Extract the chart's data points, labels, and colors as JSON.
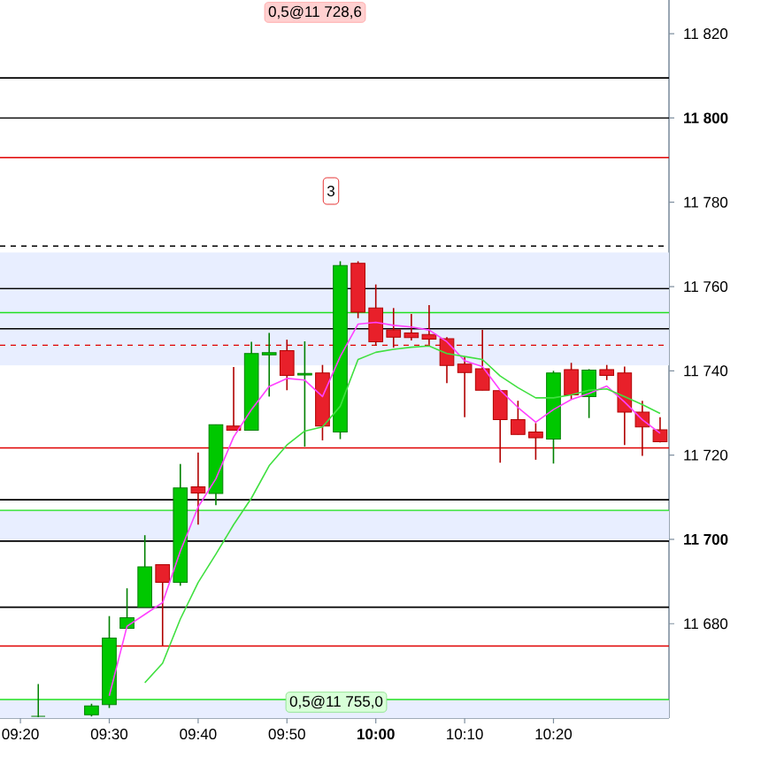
{
  "chart_data": {
    "type": "candlestick",
    "x": [
      9.3667,
      9.4667,
      9.5,
      9.5333,
      9.5667,
      9.6,
      9.6333,
      9.6667,
      9.7,
      9.7333,
      9.7667,
      9.8,
      9.8333,
      9.8667,
      9.9,
      9.9333,
      9.9667,
      10,
      10.0333,
      10.0667,
      10.1,
      10.1333,
      10.1667,
      10.2,
      10.2333,
      10.2667,
      10.3,
      10.3333,
      10.3667,
      10.4,
      10.4333,
      10.4667,
      10.5,
      10.5333
    ],
    "ohlc": [
      [
        11658,
        11665.7,
        11657.8,
        11658
      ],
      [
        11658.4,
        11661,
        11658,
        11660.5
      ],
      [
        11660.8,
        11681.8,
        11660,
        11676.6
      ],
      [
        11678.9,
        11688.4,
        11678.9,
        11681.4
      ],
      [
        11683.9,
        11701,
        11683.9,
        11693.5
      ],
      [
        11694,
        11694,
        11674.8,
        11689.8
      ],
      [
        11689.8,
        11717.9,
        11689,
        11712.2
      ],
      [
        11712.5,
        11720.6,
        11703.5,
        11711
      ],
      [
        11710.9,
        11727.2,
        11708.1,
        11727.2
      ],
      [
        11726.9,
        11740.9,
        11725.9,
        11725.9
      ],
      [
        11725.9,
        11746.9,
        11725.9,
        11744.1
      ],
      [
        11743.8,
        11749,
        11733.9,
        11744.3
      ],
      [
        11744.8,
        11747.4,
        11735.4,
        11738.9
      ],
      [
        11739,
        11747,
        11722,
        11739.4
      ],
      [
        11739.5,
        11741.4,
        11723.5,
        11726.9
      ],
      [
        11725.5,
        11766,
        11723.8,
        11765
      ],
      [
        11765.5,
        11766,
        11752.5,
        11753.9
      ],
      [
        11754.9,
        11760.5,
        11746,
        11746.9
      ],
      [
        11749.7,
        11754.9,
        11745.5,
        11748
      ],
      [
        11749,
        11753.5,
        11747.2,
        11747.9
      ],
      [
        11748.6,
        11755.6,
        11746.2,
        11747.5
      ],
      [
        11747.6,
        11748,
        11737.1,
        11741.3
      ],
      [
        11741.6,
        11743.4,
        11729,
        11739.6
      ],
      [
        11740.5,
        11749.7,
        11735.4,
        11735.4
      ],
      [
        11735.3,
        11735.3,
        11718.2,
        11728.4
      ],
      [
        11728.4,
        11732.9,
        11724.9,
        11724.9
      ],
      [
        11725.5,
        11727.6,
        11718.9,
        11724.1
      ],
      [
        11723.8,
        11740,
        11718,
        11739.5
      ],
      [
        11740.3,
        11741.9,
        11733.2,
        11734.3
      ],
      [
        11733.9,
        11740.4,
        11728.8,
        11740.2
      ],
      [
        11740.3,
        11741.4,
        11737.8,
        11738.9
      ],
      [
        11739.5,
        11741,
        11722.4,
        11730.2
      ],
      [
        11730.2,
        11732.9,
        11719.8,
        11726.7
      ],
      [
        11726,
        11729,
        11723,
        11723.2
      ]
    ],
    "series": [
      {
        "type": "line",
        "color": "#ff40ff",
        "x": [
          9.5,
          9.5333,
          9.5667,
          9.6,
          9.6333,
          9.6667,
          9.7,
          9.7333,
          9.7667,
          9.8,
          9.8333,
          9.8667,
          9.9,
          9.9333,
          9.9667,
          10,
          10.0333,
          10.0667,
          10.1,
          10.1333,
          10.1667,
          10.2,
          10.2333,
          10.2667,
          10.3,
          10.3333,
          10.3667,
          10.4,
          10.4333,
          10.4667,
          10.5,
          10.5333
        ],
        "values": [
          11662.9,
          11679.4,
          11682.2,
          11685,
          11697.2,
          11707.7,
          11714.4,
          11724.3,
          11730.8,
          11736.3,
          11738.2,
          11737.8,
          11733.9,
          11743.4,
          11751.1,
          11751.5,
          11750.8,
          11750.4,
          11749.7,
          11746.9,
          11742.4,
          11741,
          11735.4,
          11731.3,
          11727.8,
          11730.8,
          11733.2,
          11734.6,
          11736.4,
          11732.6,
          11728.4,
          11725.2
        ]
      },
      {
        "type": "line",
        "color": "#40e040",
        "x": [
          9.5667,
          9.6,
          9.6333,
          9.6667,
          9.7,
          9.7333,
          9.7667,
          9.8,
          9.8333,
          9.8667,
          9.9,
          9.9333,
          9.9667,
          10,
          10.0333,
          10.0667,
          10.1,
          10.1333,
          10.1667,
          10.2,
          10.2333,
          10.2667,
          10.3,
          10.3333,
          10.3667,
          10.4,
          10.4333,
          10.4667,
          10.5,
          10.5333
        ],
        "values": [
          11666,
          11670.6,
          11681.1,
          11689.8,
          11696.5,
          11703.5,
          11709.8,
          11717.5,
          11722.4,
          11725.7,
          11726.7,
          11731.6,
          11742.7,
          11744.4,
          11745.1,
          11745.6,
          11745.9,
          11744.1,
          11743.4,
          11742.7,
          11738.8,
          11736,
          11733.6,
          11733.6,
          11734.3,
          11735.4,
          11735.7,
          11733.9,
          11732,
          11729.9
        ]
      }
    ],
    "xlim": [
      9.295,
      10.55
    ],
    "ylim": [
      11657.6,
      11828
    ],
    "xticks": [
      {
        "value": 9.3333,
        "label": "09:20"
      },
      {
        "value": 9.5,
        "label": "09:30"
      },
      {
        "value": 9.6667,
        "label": "09:40"
      },
      {
        "value": 9.8333,
        "label": "09:50"
      },
      {
        "value": 10,
        "label": "**10:00**"
      },
      {
        "value": 10.1667,
        "label": "10:10"
      },
      {
        "value": 10.3333,
        "label": "10:20"
      }
    ],
    "yticks": [
      {
        "value": 11680,
        "label": "11 680"
      },
      {
        "value": 11700,
        "label": "**11 700**"
      },
      {
        "value": 11720,
        "label": "11 720"
      },
      {
        "value": 11740,
        "label": "11 740"
      },
      {
        "value": 11760,
        "label": "11 760"
      },
      {
        "value": 11780,
        "label": "11 780"
      },
      {
        "value": 11800,
        "label": "**11 800**"
      },
      {
        "value": 11820,
        "label": "11 820"
      }
    ],
    "bands": [
      {
        "axis": "y",
        "from": 11741.3,
        "to": 11756,
        "color": "#e8eeff"
      },
      {
        "axis": "y",
        "from": 11753.8,
        "to": 11768.1,
        "color": "#e8eeff"
      },
      {
        "axis": "y",
        "from": 11699.6,
        "to": 11706.9,
        "color": "#e8eeff"
      },
      {
        "axis": "y",
        "from": 11657.6,
        "to": 11662,
        "color": "#e8eeff"
      }
    ],
    "ref_lines": [
      {
        "axis": "y",
        "value": 11809.5,
        "color": "#000000"
      },
      {
        "axis": "y",
        "value": 11800,
        "color": "#000000"
      },
      {
        "axis": "y",
        "value": 11790.6,
        "color": "#e00000"
      },
      {
        "axis": "y",
        "value": 11769.6,
        "color": "#000000",
        "line_style": "dashed"
      },
      {
        "axis": "y",
        "value": 11759.5,
        "color": "#000000"
      },
      {
        "axis": "y",
        "value": 11753.8,
        "color": "#20e020"
      },
      {
        "axis": "y",
        "value": 11750,
        "color": "#000000"
      },
      {
        "axis": "y",
        "value": 11746.1,
        "color": "#e00000",
        "line_style": "dashed"
      },
      {
        "axis": "y",
        "value": 11721.7,
        "color": "#e00000"
      },
      {
        "axis": "y",
        "value": 11709.4,
        "color": "#000000"
      },
      {
        "axis": "y",
        "value": 11706.9,
        "color": "#20e020"
      },
      {
        "axis": "y",
        "value": 11699.6,
        "color": "#000000"
      },
      {
        "axis": "y",
        "value": 11683.9,
        "color": "#000000"
      },
      {
        "axis": "y",
        "value": 11674.7,
        "color": "#e00000"
      },
      {
        "axis": "y",
        "value": 11662,
        "color": "#20e020"
      }
    ],
    "annotations": [
      "0,5@11 728,6",
      "3",
      "0,5@11 755,0"
    ]
  }
}
